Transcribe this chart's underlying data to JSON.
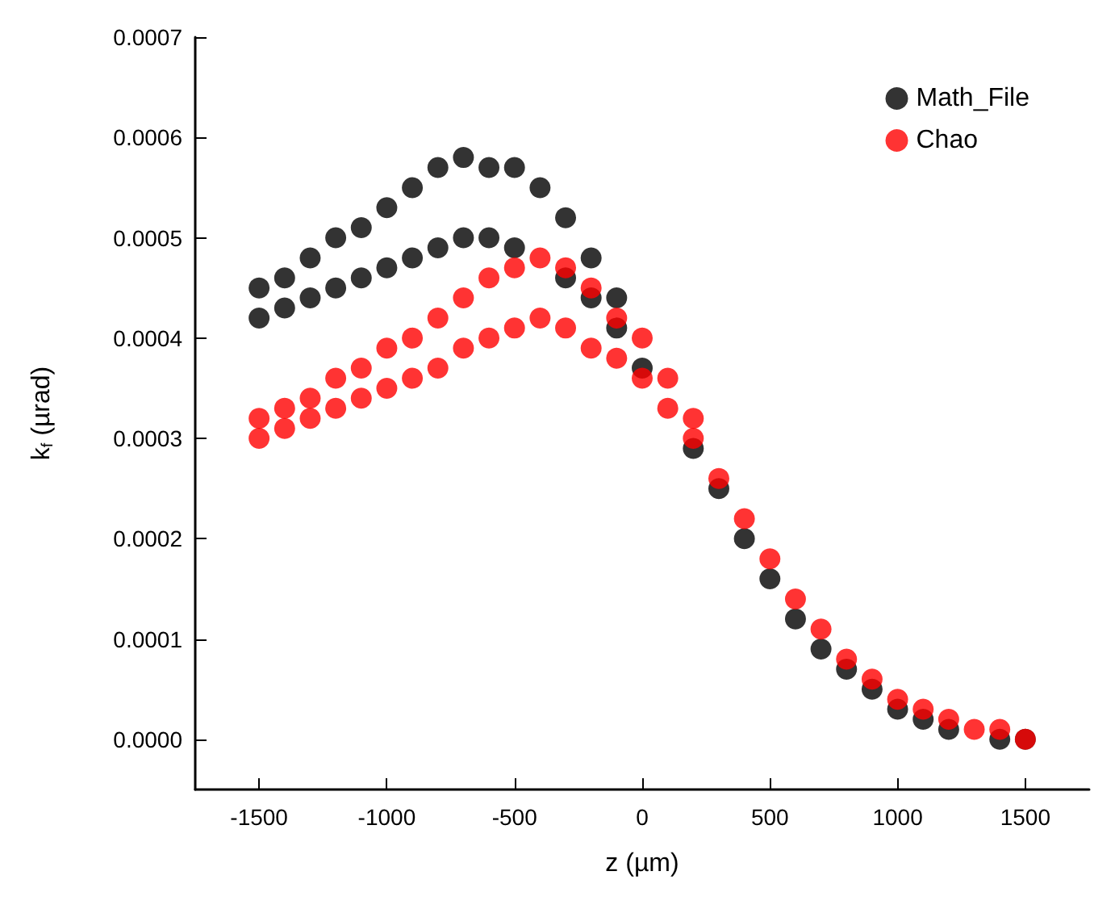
{
  "chart_data": {
    "type": "scatter",
    "xlabel": "z (µm)",
    "ylabel": "k$_{f}$ (µrad)",
    "xlim": [
      -1750,
      1750
    ],
    "xticks": [
      -1500,
      -1000,
      -500,
      0,
      500,
      1000,
      1500
    ],
    "ylim": [
      -5e-05,
      0.0007
    ],
    "yticks": [
      {
        "value": 0,
        "label": "0.0000"
      },
      {
        "value": 0.0001,
        "label": "0.0001"
      },
      {
        "value": 0.0002,
        "label": "0.0002"
      },
      {
        "value": 0.0003,
        "label": "0.0003"
      },
      {
        "value": 0.0004,
        "label": "0.0004"
      },
      {
        "value": 0.0005,
        "label": "0.0005"
      },
      {
        "value": 0.0006,
        "label": "0.0006"
      },
      {
        "value": 0.0007,
        "label": "0.0007"
      }
    ],
    "grid": false,
    "legend": "top right",
    "marker": "circle",
    "series": [
      {
        "name": "Math_File",
        "color": "#000000",
        "x": [
          -1500,
          -1500,
          -1400,
          -1400,
          -1300,
          -1300,
          -1200,
          -1200,
          -1100,
          -1100,
          -1000,
          -1000,
          -900,
          -900,
          -800,
          -800,
          -700,
          -700,
          -600,
          -600,
          -500,
          -500,
          -400,
          -300,
          -300,
          -200,
          -200,
          -100,
          -100,
          0,
          200,
          300,
          400,
          500,
          600,
          700,
          800,
          900,
          1000,
          1100,
          1200,
          1400,
          1500
        ],
        "values": [
          0.00042,
          0.00045,
          0.00043,
          0.00046,
          0.00044,
          0.00048,
          0.00045,
          0.0005,
          0.00046,
          0.00051,
          0.00047,
          0.00053,
          0.00048,
          0.00055,
          0.00049,
          0.00057,
          0.0005,
          0.00058,
          0.0005,
          0.00057,
          0.00049,
          0.00057,
          0.00055,
          0.00046,
          0.00052,
          0.00044,
          0.00048,
          0.00041,
          0.00044,
          0.00037,
          0.00029,
          0.00025,
          0.0002,
          0.00016,
          0.00012,
          9e-05,
          7e-05,
          5e-05,
          3e-05,
          2e-05,
          1e-05,
          0,
          0
        ]
      },
      {
        "name": "Chao",
        "color": "#ff0000",
        "x": [
          -1500,
          -1500,
          -1400,
          -1400,
          -1300,
          -1300,
          -1200,
          -1200,
          -1100,
          -1100,
          -1000,
          -1000,
          -900,
          -900,
          -800,
          -800,
          -700,
          -700,
          -600,
          -600,
          -500,
          -500,
          -400,
          -400,
          -300,
          -300,
          -200,
          -200,
          -100,
          -100,
          0,
          0,
          100,
          100,
          200,
          200,
          300,
          400,
          500,
          600,
          700,
          800,
          900,
          1000,
          1100,
          1200,
          1300,
          1400,
          1500
        ],
        "values": [
          0.0003,
          0.00032,
          0.00031,
          0.00033,
          0.00032,
          0.00034,
          0.00033,
          0.00036,
          0.00034,
          0.00037,
          0.00035,
          0.00039,
          0.00036,
          0.0004,
          0.00037,
          0.00042,
          0.00039,
          0.00044,
          0.0004,
          0.00046,
          0.00041,
          0.00047,
          0.00042,
          0.00048,
          0.00041,
          0.00047,
          0.00039,
          0.00045,
          0.00038,
          0.00042,
          0.00036,
          0.0004,
          0.00033,
          0.00036,
          0.0003,
          0.00032,
          0.00026,
          0.00022,
          0.00018,
          0.00014,
          0.00011,
          8e-05,
          6e-05,
          4e-05,
          3e-05,
          2e-05,
          1e-05,
          1e-05,
          0
        ]
      }
    ]
  }
}
